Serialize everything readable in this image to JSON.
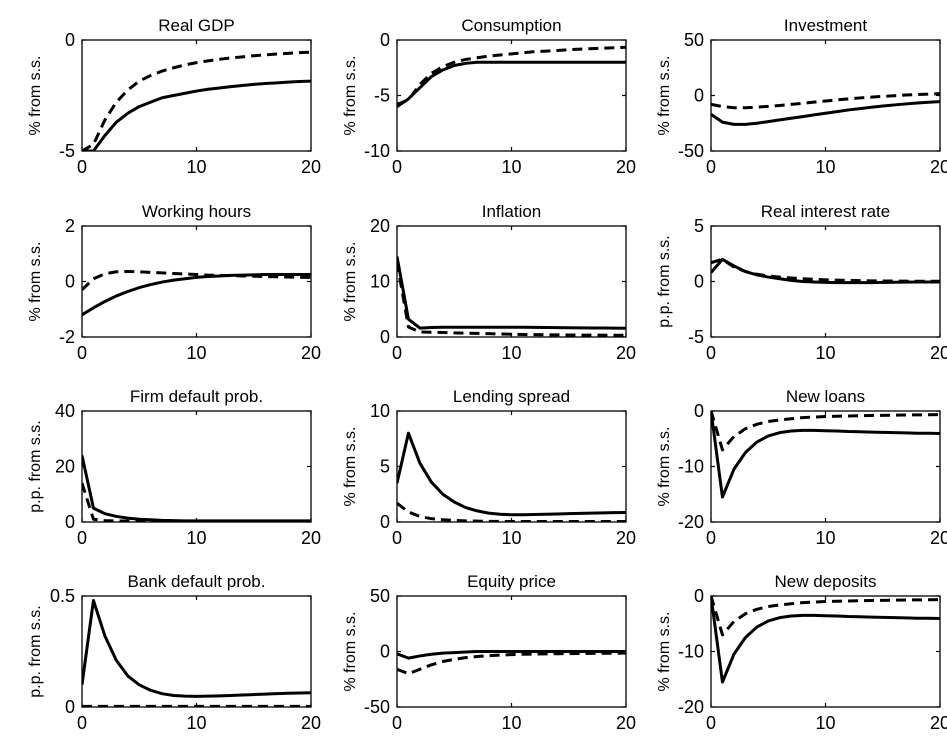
{
  "figure": {
    "line_color": "#000000",
    "background": "#ffffff",
    "legend": "none",
    "grid": false
  },
  "chart_data": [
    {
      "type": "line",
      "title": "Real GDP",
      "xlabel": "",
      "ylabel": "% from s.s.",
      "xlim": [
        0,
        20
      ],
      "ylim": [
        -5,
        0
      ],
      "xticks": [
        "0",
        "10",
        "20"
      ],
      "yticks": [
        "-5",
        "0"
      ],
      "x": [
        0,
        1,
        2,
        3,
        4,
        5,
        6,
        7,
        8,
        9,
        10,
        11,
        12,
        13,
        14,
        15,
        16,
        17,
        18,
        19,
        20
      ],
      "series": [
        {
          "style": "solid",
          "values": [
            -5.0,
            -5.0,
            -4.3,
            -3.7,
            -3.3,
            -3.0,
            -2.8,
            -2.6,
            -2.5,
            -2.4,
            -2.3,
            -2.22,
            -2.16,
            -2.1,
            -2.05,
            -2.0,
            -1.96,
            -1.93,
            -1.9,
            -1.87,
            -1.85
          ]
        },
        {
          "style": "dashed",
          "values": [
            -5.0,
            -4.7,
            -3.6,
            -2.8,
            -2.25,
            -1.85,
            -1.6,
            -1.4,
            -1.25,
            -1.12,
            -1.02,
            -0.94,
            -0.87,
            -0.81,
            -0.76,
            -0.71,
            -0.67,
            -0.63,
            -0.6,
            -0.57,
            -0.55
          ]
        }
      ]
    },
    {
      "type": "line",
      "title": "Consumption",
      "xlabel": "",
      "ylabel": "% from s.s.",
      "xlim": [
        0,
        20
      ],
      "ylim": [
        -10,
        0
      ],
      "xticks": [
        "0",
        "10",
        "20"
      ],
      "yticks": [
        "-10",
        "-5",
        "0"
      ],
      "x": [
        0,
        1,
        2,
        3,
        4,
        5,
        6,
        7,
        8,
        9,
        10,
        11,
        12,
        13,
        14,
        15,
        16,
        17,
        18,
        19,
        20
      ],
      "series": [
        {
          "style": "solid",
          "values": [
            -6.0,
            -5.3,
            -4.3,
            -3.3,
            -2.7,
            -2.3,
            -2.1,
            -2.0,
            -2.0,
            -2.0,
            -2.0,
            -2.0,
            -2.0,
            -2.0,
            -2.0,
            -2.0,
            -2.0,
            -2.0,
            -2.0,
            -2.0,
            -2.0
          ]
        },
        {
          "style": "dashed",
          "values": [
            -5.8,
            -5.4,
            -4.0,
            -3.0,
            -2.4,
            -2.0,
            -1.75,
            -1.6,
            -1.45,
            -1.35,
            -1.25,
            -1.15,
            -1.05,
            -1.0,
            -0.95,
            -0.88,
            -0.82,
            -0.78,
            -0.74,
            -0.7,
            -0.65
          ]
        }
      ]
    },
    {
      "type": "line",
      "title": "Investment",
      "xlabel": "",
      "ylabel": "% from s.s.",
      "xlim": [
        0,
        20
      ],
      "ylim": [
        -50,
        50
      ],
      "xticks": [
        "0",
        "10",
        "20"
      ],
      "yticks": [
        "-50",
        "0",
        "50"
      ],
      "x": [
        0,
        1,
        2,
        3,
        4,
        5,
        6,
        7,
        8,
        9,
        10,
        11,
        12,
        13,
        14,
        15,
        16,
        17,
        18,
        19,
        20
      ],
      "series": [
        {
          "style": "solid",
          "values": [
            -17,
            -24,
            -26,
            -26,
            -25,
            -23.5,
            -22,
            -20.5,
            -19,
            -17.5,
            -16,
            -14.5,
            -13,
            -11.8,
            -10.6,
            -9.5,
            -8.5,
            -7.6,
            -6.8,
            -6.1,
            -5.5
          ]
        },
        {
          "style": "dashed",
          "values": [
            -8,
            -10,
            -11,
            -11,
            -10.5,
            -9.8,
            -9,
            -8,
            -7,
            -6,
            -5,
            -4,
            -3,
            -2.2,
            -1.5,
            -0.8,
            -0.2,
            0.4,
            0.9,
            1.3,
            1.7
          ]
        }
      ]
    },
    {
      "type": "line",
      "title": "Working hours",
      "xlabel": "",
      "ylabel": "% from s.s.",
      "xlim": [
        0,
        20
      ],
      "ylim": [
        -2,
        2
      ],
      "xticks": [
        "0",
        "10",
        "20"
      ],
      "yticks": [
        "-2",
        "0",
        "2"
      ],
      "x": [
        0,
        1,
        2,
        3,
        4,
        5,
        6,
        7,
        8,
        9,
        10,
        11,
        12,
        13,
        14,
        15,
        16,
        17,
        18,
        19,
        20
      ],
      "series": [
        {
          "style": "solid",
          "values": [
            -1.2,
            -0.95,
            -0.72,
            -0.52,
            -0.36,
            -0.22,
            -0.11,
            -0.02,
            0.05,
            0.1,
            0.15,
            0.18,
            0.2,
            0.22,
            0.23,
            0.24,
            0.25,
            0.25,
            0.25,
            0.25,
            0.25
          ]
        },
        {
          "style": "dashed",
          "values": [
            -0.3,
            0.1,
            0.28,
            0.35,
            0.36,
            0.35,
            0.33,
            0.31,
            0.29,
            0.27,
            0.25,
            0.23,
            0.22,
            0.21,
            0.2,
            0.19,
            0.18,
            0.17,
            0.16,
            0.15,
            0.15
          ]
        }
      ]
    },
    {
      "type": "line",
      "title": "Inflation",
      "xlabel": "",
      "ylabel": "% from s.s.",
      "xlim": [
        0,
        20
      ],
      "ylim": [
        0,
        20
      ],
      "xticks": [
        "0",
        "10",
        "20"
      ],
      "yticks": [
        "0",
        "10",
        "20"
      ],
      "x": [
        0,
        1,
        2,
        3,
        4,
        5,
        6,
        7,
        8,
        9,
        10,
        11,
        12,
        13,
        14,
        15,
        16,
        17,
        18,
        19,
        20
      ],
      "series": [
        {
          "style": "solid",
          "values": [
            14.5,
            3.2,
            1.6,
            1.7,
            1.75,
            1.75,
            1.75,
            1.75,
            1.75,
            1.75,
            1.75,
            1.75,
            1.73,
            1.71,
            1.69,
            1.67,
            1.65,
            1.63,
            1.61,
            1.59,
            1.57
          ]
        },
        {
          "style": "dashed",
          "values": [
            13.5,
            1.8,
            0.9,
            0.85,
            0.8,
            0.75,
            0.7,
            0.65,
            0.6,
            0.55,
            0.5,
            0.45,
            0.42,
            0.4,
            0.38,
            0.36,
            0.35,
            0.34,
            0.33,
            0.32,
            0.3
          ]
        }
      ]
    },
    {
      "type": "line",
      "title": "Real interest rate",
      "xlabel": "",
      "ylabel": "p.p. from s.s.",
      "xlim": [
        0,
        20
      ],
      "ylim": [
        -5,
        5
      ],
      "xticks": [
        "0",
        "10",
        "20"
      ],
      "yticks": [
        "-5",
        "0",
        "5"
      ],
      "x": [
        0,
        1,
        2,
        3,
        4,
        5,
        6,
        7,
        8,
        9,
        10,
        11,
        12,
        13,
        14,
        15,
        16,
        17,
        18,
        19,
        20
      ],
      "series": [
        {
          "style": "solid",
          "values": [
            0.8,
            2.0,
            1.4,
            0.9,
            0.6,
            0.4,
            0.25,
            0.1,
            0.0,
            -0.05,
            -0.08,
            -0.1,
            -0.1,
            -0.1,
            -0.1,
            -0.08,
            -0.07,
            -0.06,
            -0.05,
            -0.05,
            -0.05
          ]
        },
        {
          "style": "dashed",
          "values": [
            1.7,
            2.0,
            1.3,
            0.9,
            0.65,
            0.5,
            0.4,
            0.32,
            0.25,
            0.2,
            0.15,
            0.12,
            0.1,
            0.08,
            0.06,
            0.05,
            0.04,
            0.03,
            0.02,
            0.02,
            0.02
          ]
        }
      ]
    },
    {
      "type": "line",
      "title": "Firm default prob.",
      "xlabel": "",
      "ylabel": "p.p. from s.s.",
      "xlim": [
        0,
        20
      ],
      "ylim": [
        0,
        40
      ],
      "xticks": [
        "0",
        "10",
        "20"
      ],
      "yticks": [
        "0",
        "20",
        "40"
      ],
      "x": [
        0,
        1,
        2,
        3,
        4,
        5,
        6,
        7,
        8,
        9,
        10,
        11,
        12,
        13,
        14,
        15,
        16,
        17,
        18,
        19,
        20
      ],
      "series": [
        {
          "style": "solid",
          "values": [
            24,
            5,
            3,
            2,
            1.4,
            1.0,
            0.8,
            0.6,
            0.5,
            0.4,
            0.4,
            0.4,
            0.4,
            0.4,
            0.4,
            0.4,
            0.4,
            0.4,
            0.4,
            0.4,
            0.4
          ]
        },
        {
          "style": "dashed",
          "values": [
            14,
            1,
            0.5,
            0.4,
            0.3,
            0.2,
            0.2,
            0.2,
            0.2,
            0.2,
            0.2,
            0.2,
            0.2,
            0.2,
            0.2,
            0.2,
            0.2,
            0.2,
            0.2,
            0.2,
            0.2
          ]
        }
      ]
    },
    {
      "type": "line",
      "title": "Lending spread",
      "xlabel": "",
      "ylabel": "% from s.s.",
      "xlim": [
        0,
        20
      ],
      "ylim": [
        0,
        10
      ],
      "xticks": [
        "0",
        "10",
        "20"
      ],
      "yticks": [
        "0",
        "5",
        "10"
      ],
      "x": [
        0,
        1,
        2,
        3,
        4,
        5,
        6,
        7,
        8,
        9,
        10,
        11,
        12,
        13,
        14,
        15,
        16,
        17,
        18,
        19,
        20
      ],
      "series": [
        {
          "style": "solid",
          "values": [
            3.5,
            8.0,
            5.3,
            3.6,
            2.5,
            1.8,
            1.3,
            1.0,
            0.8,
            0.7,
            0.65,
            0.65,
            0.67,
            0.7,
            0.72,
            0.75,
            0.78,
            0.8,
            0.82,
            0.84,
            0.86
          ]
        },
        {
          "style": "dashed",
          "values": [
            1.7,
            0.9,
            0.5,
            0.3,
            0.2,
            0.15,
            0.1,
            0.08,
            0.06,
            0.05,
            0.05,
            0.05,
            0.05,
            0.05,
            0.05,
            0.05,
            0.05,
            0.05,
            0.05,
            0.05,
            0.05
          ]
        }
      ]
    },
    {
      "type": "line",
      "title": "New loans",
      "xlabel": "",
      "ylabel": "% from s.s.",
      "xlim": [
        0,
        20
      ],
      "ylim": [
        -20,
        0
      ],
      "xticks": [
        "0",
        "10",
        "20"
      ],
      "yticks": [
        "-20",
        "-10",
        "0"
      ],
      "x": [
        0,
        1,
        2,
        3,
        4,
        5,
        6,
        7,
        8,
        9,
        10,
        11,
        12,
        13,
        14,
        15,
        16,
        17,
        18,
        19,
        20
      ],
      "series": [
        {
          "style": "solid",
          "values": [
            0,
            -15.5,
            -10.5,
            -7.5,
            -5.6,
            -4.5,
            -3.9,
            -3.6,
            -3.5,
            -3.5,
            -3.55,
            -3.6,
            -3.7,
            -3.75,
            -3.8,
            -3.85,
            -3.9,
            -3.95,
            -4.0,
            -4.0,
            -4.05
          ]
        },
        {
          "style": "dashed",
          "values": [
            0,
            -7.0,
            -4.6,
            -3.2,
            -2.4,
            -1.9,
            -1.6,
            -1.4,
            -1.2,
            -1.1,
            -1.0,
            -0.95,
            -0.9,
            -0.85,
            -0.8,
            -0.78,
            -0.75,
            -0.72,
            -0.7,
            -0.68,
            -0.65
          ]
        }
      ]
    },
    {
      "type": "line",
      "title": "Bank default prob.",
      "xlabel": "",
      "ylabel": "p.p. from s.s.",
      "xlim": [
        0,
        20
      ],
      "ylim": [
        0,
        0.5
      ],
      "xticks": [
        "0",
        "10",
        "20"
      ],
      "yticks": [
        "0",
        "0.5"
      ],
      "x": [
        0,
        1,
        2,
        3,
        4,
        5,
        6,
        7,
        8,
        9,
        10,
        11,
        12,
        13,
        14,
        15,
        16,
        17,
        18,
        19,
        20
      ],
      "series": [
        {
          "style": "solid",
          "values": [
            0.1,
            0.48,
            0.32,
            0.21,
            0.14,
            0.1,
            0.075,
            0.06,
            0.052,
            0.049,
            0.048,
            0.049,
            0.05,
            0.052,
            0.054,
            0.056,
            0.058,
            0.06,
            0.062,
            0.063,
            0.064
          ]
        },
        {
          "style": "dashed",
          "values": [
            0.003,
            0.003,
            0.003,
            0.003,
            0.003,
            0.003,
            0.003,
            0.003,
            0.003,
            0.003,
            0.003,
            0.003,
            0.003,
            0.003,
            0.003,
            0.003,
            0.003,
            0.003,
            0.003,
            0.003,
            0.003
          ]
        }
      ]
    },
    {
      "type": "line",
      "title": "Equity price",
      "xlabel": "",
      "ylabel": "% from s.s.",
      "xlim": [
        0,
        20
      ],
      "ylim": [
        -50,
        50
      ],
      "xticks": [
        "0",
        "10",
        "20"
      ],
      "yticks": [
        "-50",
        "0",
        "50"
      ],
      "x": [
        0,
        1,
        2,
        3,
        4,
        5,
        6,
        7,
        8,
        9,
        10,
        11,
        12,
        13,
        14,
        15,
        16,
        17,
        18,
        19,
        20
      ],
      "series": [
        {
          "style": "solid",
          "values": [
            -2,
            -6,
            -4,
            -2.5,
            -1.5,
            -1,
            -0.5,
            0,
            0,
            0,
            0,
            0,
            0,
            0,
            0,
            0,
            0,
            0,
            0,
            0,
            0
          ]
        },
        {
          "style": "dashed",
          "values": [
            -16,
            -20,
            -16,
            -12,
            -9,
            -7,
            -5.5,
            -4.5,
            -3.8,
            -3.2,
            -2.8,
            -2.5,
            -2.3,
            -2.1,
            -2,
            -1.9,
            -1.8,
            -1.7,
            -1.6,
            -1.5,
            -1.5
          ]
        }
      ]
    },
    {
      "type": "line",
      "title": "New deposits",
      "xlabel": "",
      "ylabel": "% from s.s.",
      "xlim": [
        0,
        20
      ],
      "ylim": [
        -20,
        0
      ],
      "xticks": [
        "0",
        "10",
        "20"
      ],
      "yticks": [
        "-20",
        "-10",
        "0"
      ],
      "x": [
        0,
        1,
        2,
        3,
        4,
        5,
        6,
        7,
        8,
        9,
        10,
        11,
        12,
        13,
        14,
        15,
        16,
        17,
        18,
        19,
        20
      ],
      "series": [
        {
          "style": "solid",
          "values": [
            0,
            -15.5,
            -10.5,
            -7.5,
            -5.6,
            -4.5,
            -3.9,
            -3.6,
            -3.5,
            -3.5,
            -3.55,
            -3.6,
            -3.7,
            -3.75,
            -3.8,
            -3.85,
            -3.9,
            -3.95,
            -4.0,
            -4.0,
            -4.05
          ]
        },
        {
          "style": "dashed",
          "values": [
            0,
            -7.0,
            -4.6,
            -3.2,
            -2.4,
            -1.9,
            -1.6,
            -1.4,
            -1.2,
            -1.1,
            -1.0,
            -0.95,
            -0.9,
            -0.85,
            -0.8,
            -0.78,
            -0.75,
            -0.72,
            -0.7,
            -0.68,
            -0.65
          ]
        }
      ]
    }
  ]
}
